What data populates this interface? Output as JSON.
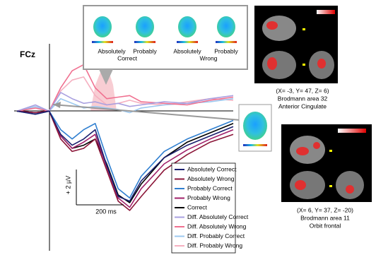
{
  "chart_data": {
    "type": "line",
    "title": "FCz",
    "x": [
      -140,
      -60,
      0,
      50,
      100,
      150,
      200,
      250,
      300,
      350,
      400,
      500,
      600,
      700,
      800
    ],
    "xlim": [
      -140,
      800
    ],
    "ylim": [
      -4.2,
      9
    ],
    "invert_y": true,
    "legend": "lower right",
    "series": [
      {
        "name": "Absolutely Correct",
        "color": "#1a1f6e",
        "values": [
          0,
          0.2,
          0,
          1.5,
          2.2,
          1.8,
          1.2,
          3.5,
          5.5,
          5.8,
          4.5,
          3.0,
          2.2,
          1.6,
          1.0
        ]
      },
      {
        "name": "Absolutely Wrong",
        "color": "#8b1538",
        "values": [
          0,
          0.1,
          0,
          1.8,
          2.6,
          2.4,
          1.8,
          3.8,
          5.8,
          6.4,
          5.5,
          3.8,
          2.8,
          2.0,
          1.5
        ]
      },
      {
        "name": "Probably Correct",
        "color": "#2f7fd0",
        "values": [
          0,
          0.2,
          0,
          1.2,
          1.8,
          1.2,
          0.8,
          3.0,
          5.0,
          5.6,
          4.2,
          2.6,
          1.8,
          1.2,
          0.6
        ]
      },
      {
        "name": "Probably Wrong",
        "color": "#a0206a",
        "values": [
          0,
          0.1,
          0,
          1.6,
          2.4,
          2.0,
          1.5,
          3.6,
          5.6,
          6.2,
          5.0,
          3.4,
          2.5,
          1.8,
          1.2
        ]
      },
      {
        "name": "Correct",
        "color": "#000000",
        "values": [
          0,
          0.1,
          0,
          1.6,
          2.4,
          2.2,
          1.8,
          3.4,
          5.4,
          5.9,
          4.7,
          3.0,
          2.0,
          1.4,
          0.8
        ]
      },
      {
        "name": "Diff. Absolutely Correct",
        "color": "#a9a0e0",
        "values": [
          0,
          -0.4,
          0,
          -1.2,
          -0.8,
          -0.5,
          -0.6,
          -0.4,
          -0.5,
          -0.3,
          -0.4,
          -0.6,
          -0.5,
          -0.8,
          -1.0
        ]
      },
      {
        "name": "Diff. Absolutely Wrong",
        "color": "#f07090",
        "values": [
          0,
          -0.2,
          0,
          -1.5,
          -2.6,
          -3.0,
          -1.5,
          -0.8,
          -0.9,
          -1.0,
          -0.6,
          -0.5,
          -0.4,
          -0.7,
          -0.9
        ]
      },
      {
        "name": "Diff. Probably Correct",
        "color": "#9cc8f0",
        "values": [
          0,
          -0.3,
          0,
          -0.8,
          -0.5,
          -0.2,
          -0.3,
          -0.2,
          -0.1,
          0.1,
          -0.2,
          -0.4,
          -0.5,
          -0.6,
          -0.8
        ]
      },
      {
        "name": "Diff. Probably Wrong",
        "color": "#f5b0c0",
        "values": [
          0,
          -0.2,
          0,
          -1.3,
          -2.0,
          -2.2,
          -1.0,
          -0.4,
          -0.5,
          -0.7,
          -0.5,
          -0.4,
          -0.6,
          -0.8,
          -0.7
        ]
      }
    ],
    "scale_labels": [
      "+ 2 µV",
      "200 ms"
    ],
    "map_labels": [
      "Absolutely",
      "Probably",
      "Correct",
      "Absolutely",
      "Probably",
      "Wrong"
    ],
    "annotations": [
      "(X= -3, Y= 47, Z= 6)",
      "Brodmann area 32",
      "Anterior Cingulate",
      "(X= 6, Y= 37, Z= -20)",
      "Brodmann area 11",
      "Orbit frontal"
    ]
  }
}
